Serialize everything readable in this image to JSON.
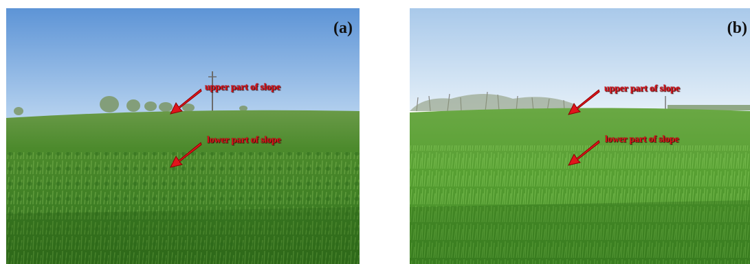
{
  "figure": {
    "panels": [
      {
        "letter": "(a)",
        "annotations": {
          "upper": "upper part of slope",
          "lower": "lower part of slope"
        }
      },
      {
        "letter": "(b)",
        "annotations": {
          "upper": "upper part of slope",
          "lower": "lower part of slope"
        }
      }
    ],
    "colors": {
      "arrow": "#e0141c",
      "label": "#d8141c",
      "sky_a": "#6fa3dc",
      "sky_b": "#cfe2f3",
      "field_a": "#4f8f2c",
      "field_b": "#5ca23a"
    }
  }
}
